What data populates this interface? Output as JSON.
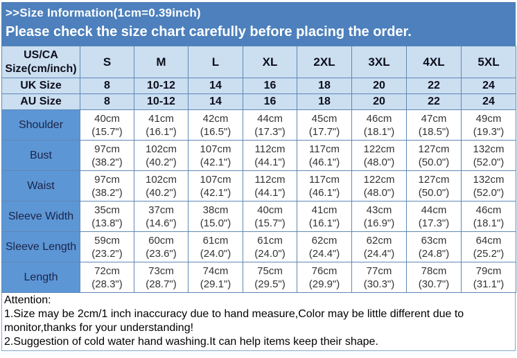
{
  "banner": {
    "title": ">>Size Information(1cm=0.39inch)",
    "subtitle": "Please check the size chart carefully before placing the order."
  },
  "colors": {
    "banner_bg": "#4d80bc",
    "header_cell_bg": "#cbdff1",
    "label_cell_bg": "#5d96d5",
    "grid_border": "#5f87b5",
    "banner_text": "#ffffff",
    "label_text": "#1b2447",
    "data_text": "#333333"
  },
  "table": {
    "corner_header_line1": "US/CA",
    "corner_header_line2": "Size(cm/inch)",
    "size_columns": [
      "S",
      "M",
      "L",
      "XL",
      "2XL",
      "3XL",
      "4XL",
      "5XL"
    ],
    "size_rows": [
      {
        "label": "UK Size",
        "values": [
          "8",
          "10-12",
          "14",
          "16",
          "18",
          "20",
          "22",
          "24"
        ]
      },
      {
        "label": "AU Size",
        "values": [
          "8",
          "10-12",
          "14",
          "16",
          "18",
          "20",
          "22",
          "24"
        ]
      }
    ],
    "measurement_rows": [
      {
        "label": "Shoulder",
        "cells": [
          "40cm\n(15.7\")",
          "41cm\n(16.1\")",
          "42cm\n(16.5\")",
          "44cm\n(17.3\")",
          "45cm\n(17.7\")",
          "46cm\n(18.1\")",
          "47cm\n(18.5\")",
          "49cm\n(19.3\")"
        ]
      },
      {
        "label": "Bust",
        "cells": [
          "97cm\n(38.2\")",
          "102cm\n(40.2\")",
          "107cm\n(42.1\")",
          "112cm\n(44.1\")",
          "117cm\n(46.1\")",
          "122cm\n(48.0\")",
          "127cm\n(50.0\")",
          "132cm\n(52.0\")"
        ]
      },
      {
        "label": "Waist",
        "cells": [
          "97cm\n(38.2\")",
          "102cm\n(40.2\")",
          "107cm\n(42.1\")",
          "112cm\n(44.1\")",
          "117cm\n(46.1\")",
          "122cm\n(48.0\")",
          "127cm\n(50.0\")",
          "132cm\n(52.0\")"
        ]
      },
      {
        "label": "Sleeve Width",
        "cells": [
          "35cm\n(13.8\")",
          "37cm\n(14.6\")",
          "38cm\n(15.0\")",
          "40cm\n(15.7\")",
          "41cm\n(16.1\")",
          "43cm\n(16.9\")",
          "44cm\n(17.3\")",
          "46cm\n(18.1\")"
        ]
      },
      {
        "label": "Sleeve Length",
        "cells": [
          "59cm\n(23.2\")",
          "60cm\n(23.6\")",
          "61cm\n(24.0\")",
          "61cm\n(24.0\")",
          "62cm\n(24.4\")",
          "62cm\n(24.4\")",
          "63cm\n(24.8\")",
          "64cm\n(25.2\")"
        ]
      },
      {
        "label": "Length",
        "cells": [
          "72cm\n(28.3\")",
          "73cm\n(28.7\")",
          "74cm\n(29.1\")",
          "75cm\n(29.5\")",
          "76cm\n(29.9\")",
          "77cm\n(30.3\")",
          "78cm\n(30.7\")",
          "79cm\n(31.1\")"
        ]
      }
    ]
  },
  "attention": {
    "title": "Attention:",
    "lines": [
      "1.Size may be 2cm/1 inch inaccuracy due to hand measure,Color may be little different due to monitor,thanks for your understanding!",
      "2.Suggestion of cold water hand washing.It can help items keep their shape."
    ]
  }
}
